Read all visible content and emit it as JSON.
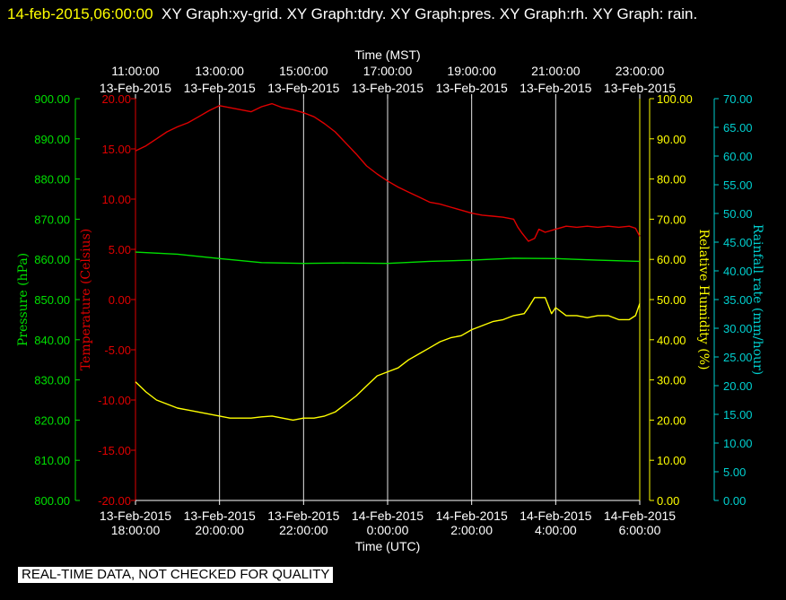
{
  "header": {
    "timestamp": "14-feb-2015,06:00:00",
    "title": "XY Graph:xy-grid.  XY Graph:tdry.  XY Graph:pres.  XY Graph:rh.  XY Graph: rain."
  },
  "disclaimer": "REAL-TIME DATA, NOT CHECKED FOR QUALITY",
  "colors": {
    "pressure": "#00e000",
    "temperature": "#e00000",
    "humidity": "#ffff00",
    "rain": "#00d0d0",
    "grid": "#ffffff",
    "background": "#000000"
  },
  "chart_data": {
    "type": "line",
    "top_axis": {
      "label": "Time (MST)",
      "ticks": [
        {
          "time": "11:00:00",
          "date": "13-Feb-2015"
        },
        {
          "time": "13:00:00",
          "date": "13-Feb-2015"
        },
        {
          "time": "15:00:00",
          "date": "13-Feb-2015"
        },
        {
          "time": "17:00:00",
          "date": "13-Feb-2015"
        },
        {
          "time": "19:00:00",
          "date": "13-Feb-2015"
        },
        {
          "time": "21:00:00",
          "date": "13-Feb-2015"
        },
        {
          "time": "23:00:00",
          "date": "13-Feb-2015"
        }
      ]
    },
    "bottom_axis": {
      "label": "Time (UTC)",
      "ticks": [
        {
          "date": "13-Feb-2015",
          "time": "18:00:00"
        },
        {
          "date": "13-Feb-2015",
          "time": "20:00:00"
        },
        {
          "date": "13-Feb-2015",
          "time": "22:00:00"
        },
        {
          "date": "14-Feb-2015",
          "time": "0:00:00"
        },
        {
          "date": "14-Feb-2015",
          "time": "2:00:00"
        },
        {
          "date": "14-Feb-2015",
          "time": "4:00:00"
        },
        {
          "date": "14-Feb-2015",
          "time": "6:00:00"
        }
      ],
      "xlim_hours_utc": [
        0,
        12
      ]
    },
    "axes": [
      {
        "id": "pressure",
        "label": "Pressure (hPa)",
        "color": "#00e000",
        "min": 800,
        "max": 900,
        "ticks": [
          "800.00",
          "810.00",
          "820.00",
          "830.00",
          "840.00",
          "850.00",
          "860.00",
          "870.00",
          "880.00",
          "890.00",
          "900.00"
        ]
      },
      {
        "id": "temperature",
        "label": "Temperature (Celsius)",
        "color": "#e00000",
        "min": -20,
        "max": 20,
        "ticks": [
          "-20.00",
          "-15.00",
          "-10.00",
          "-5.00",
          "0.00",
          "5.00",
          "10.00",
          "15.00",
          "20.00"
        ]
      },
      {
        "id": "humidity",
        "label": "Relative Humidity (%)",
        "color": "#ffff00",
        "min": 0,
        "max": 100,
        "ticks": [
          "0.00",
          "10.00",
          "20.00",
          "30.00",
          "40.00",
          "50.00",
          "60.00",
          "70.00",
          "80.00",
          "90.00",
          "100.00"
        ]
      },
      {
        "id": "rain",
        "label": "Rainfall rate (mm/hour)",
        "color": "#00d0d0",
        "min": 0,
        "max": 70,
        "ticks": [
          "0.00",
          "5.00",
          "10.00",
          "15.00",
          "20.00",
          "25.00",
          "30.00",
          "35.00",
          "40.00",
          "45.00",
          "50.00",
          "55.00",
          "60.00",
          "65.00",
          "70.00"
        ]
      }
    ],
    "series": [
      {
        "name": "tdry",
        "axis": "temperature",
        "color": "#e00000",
        "x": [
          0,
          0.25,
          0.5,
          0.75,
          1,
          1.25,
          1.5,
          1.75,
          2,
          2.25,
          2.5,
          2.75,
          3,
          3.25,
          3.5,
          3.75,
          4,
          4.25,
          4.5,
          4.75,
          5,
          5.25,
          5.5,
          5.75,
          6,
          6.25,
          6.5,
          6.75,
          7,
          7.25,
          7.5,
          7.75,
          8,
          8.25,
          8.5,
          8.75,
          9,
          9.1,
          9.2,
          9.35,
          9.5,
          9.6,
          9.75,
          10,
          10.25,
          10.5,
          10.75,
          11,
          11.25,
          11.5,
          11.75,
          11.9,
          12
        ],
        "y": [
          14.8,
          15.3,
          16.0,
          16.7,
          17.2,
          17.6,
          18.2,
          18.8,
          19.3,
          19.1,
          18.9,
          18.7,
          19.2,
          19.5,
          19.1,
          18.9,
          18.6,
          18.2,
          17.5,
          16.7,
          15.6,
          14.5,
          13.3,
          12.5,
          11.8,
          11.2,
          10.7,
          10.2,
          9.7,
          9.5,
          9.2,
          8.9,
          8.6,
          8.4,
          8.3,
          8.2,
          8.0,
          7.2,
          6.6,
          5.8,
          6.1,
          7.0,
          6.7,
          7.0,
          7.3,
          7.2,
          7.3,
          7.2,
          7.3,
          7.2,
          7.3,
          7.1,
          6.3
        ]
      },
      {
        "name": "pres",
        "axis": "pressure",
        "color": "#00e000",
        "x": [
          0,
          1,
          2,
          3,
          4,
          5,
          6,
          7,
          8,
          9,
          10,
          11,
          12
        ],
        "y": [
          861.8,
          861.3,
          860.2,
          859.2,
          859.0,
          859.1,
          859.0,
          859.5,
          859.8,
          860.3,
          860.2,
          859.8,
          859.5
        ]
      },
      {
        "name": "rh",
        "axis": "humidity",
        "color": "#ffff00",
        "x": [
          0,
          0.25,
          0.5,
          0.75,
          1,
          1.25,
          1.5,
          1.75,
          2,
          2.25,
          2.5,
          2.75,
          3,
          3.25,
          3.5,
          3.75,
          4,
          4.25,
          4.5,
          4.75,
          5,
          5.25,
          5.5,
          5.75,
          6,
          6.25,
          6.5,
          6.75,
          7,
          7.25,
          7.5,
          7.75,
          8,
          8.25,
          8.5,
          8.75,
          9,
          9.25,
          9.35,
          9.5,
          9.75,
          9.9,
          10,
          10.25,
          10.5,
          10.75,
          11,
          11.25,
          11.5,
          11.75,
          11.9,
          12
        ],
        "y": [
          29.5,
          27,
          25,
          24,
          23,
          22.5,
          22,
          21.5,
          21,
          20.5,
          20.5,
          20.5,
          20.8,
          21,
          20.5,
          20,
          20.5,
          20.5,
          21,
          22,
          24,
          26,
          28.5,
          31,
          32,
          33,
          35,
          36.5,
          38,
          39.5,
          40.5,
          41,
          42.5,
          43.5,
          44.5,
          45,
          46,
          46.5,
          48,
          50.5,
          50.5,
          46.5,
          48,
          46,
          46,
          45.5,
          46,
          46,
          45,
          45,
          46,
          49
        ]
      }
    ]
  }
}
